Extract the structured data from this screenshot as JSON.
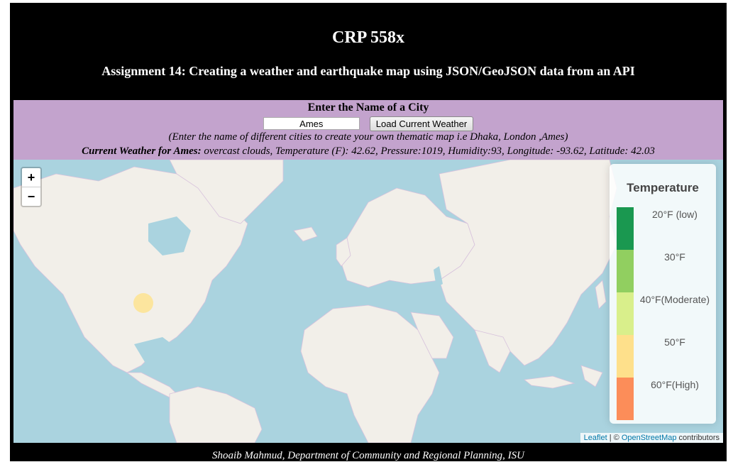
{
  "header": {
    "title": "CRP 558x",
    "subtitle": "Assignment 14: Creating a weather and earthquake map using JSON/GeoJSON data from an API"
  },
  "form": {
    "label": "Enter the Name of a City",
    "city_value": "Ames",
    "button_label": "Load Current Weather",
    "hint": "(Enter the name of different cities to create your own thematic map i.e Dhaka, London ,Ames)"
  },
  "weather": {
    "prefix": "Current Weather for Ames:",
    "details": "overcast clouds,  Temperature (F): 42.62,  Pressure:1019,  Humidity:93,  Longitude: -93.62,  Latitude: 42.03"
  },
  "map": {
    "zoom_in": "+",
    "zoom_out": "−",
    "marker_color": "#fee391",
    "legend": {
      "title": "Temperature",
      "items": [
        {
          "label": "20°F (low)",
          "color": "#1a9850"
        },
        {
          "label": "30°F",
          "color": "#91cf60"
        },
        {
          "label": "40°F(Moderate)",
          "color": "#d9ef8b"
        },
        {
          "label": "50°F",
          "color": "#fee08b"
        },
        {
          "label": "60°F(High)",
          "color": "#fc8d59"
        }
      ]
    },
    "attribution": {
      "leaflet": "Leaflet",
      "sep": " | © ",
      "osm": "OpenStreetMap",
      "suffix": " contributors"
    }
  },
  "footer": {
    "text": "Shoaib Mahmud, Department of Community and Regional Planning, ISU"
  }
}
